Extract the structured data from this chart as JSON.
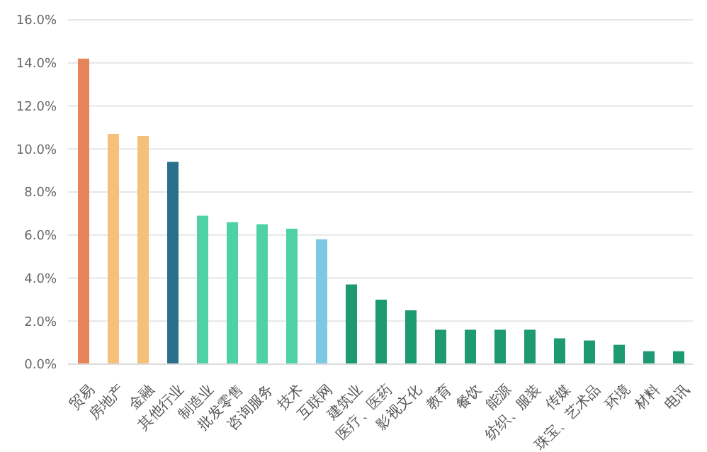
{
  "chart_data": {
    "type": "bar",
    "categories": [
      "贸易",
      "房地产",
      "金融",
      "其他行业",
      "制造业",
      "批发零售",
      "咨询服务",
      "技术",
      "互联网",
      "建筑业",
      "医疗、医药",
      "影视文化",
      "教育",
      "餐饮",
      "能源",
      "纺织、服装",
      "传媒",
      "珠宝、艺术品",
      "环境",
      "材料",
      "电讯"
    ],
    "values": [
      14.2,
      10.7,
      10.6,
      9.4,
      6.9,
      6.6,
      6.5,
      6.3,
      5.8,
      3.7,
      3.0,
      2.5,
      1.6,
      1.6,
      1.6,
      1.6,
      1.2,
      1.1,
      0.9,
      0.6,
      0.6
    ],
    "colors": [
      "#e8845a",
      "#f4c07a",
      "#f4c07a",
      "#2a6f8a",
      "#4fd1a8",
      "#4fd1a8",
      "#4fd1a8",
      "#4fd1a8",
      "#7ec8e3",
      "#1e9a72",
      "#1e9a72",
      "#1e9a72",
      "#1e9a72",
      "#1e9a72",
      "#1e9a72",
      "#1e9a72",
      "#1e9a72",
      "#1e9a72",
      "#1e9a72",
      "#1e9a72",
      "#1e9a72"
    ],
    "ylim": [
      0,
      16
    ],
    "yticks": [
      {
        "value": 0,
        "label": "0.0%"
      },
      {
        "value": 2,
        "label": "2.0%"
      },
      {
        "value": 4,
        "label": "4.0%"
      },
      {
        "value": 6,
        "label": "6.0%"
      },
      {
        "value": 8,
        "label": "8.0%"
      },
      {
        "value": 10,
        "label": "10.0%"
      },
      {
        "value": 12,
        "label": "12.0%"
      },
      {
        "value": 14,
        "label": "14.0%"
      },
      {
        "value": 16,
        "label": "16.0%"
      }
    ],
    "grid": "y"
  }
}
